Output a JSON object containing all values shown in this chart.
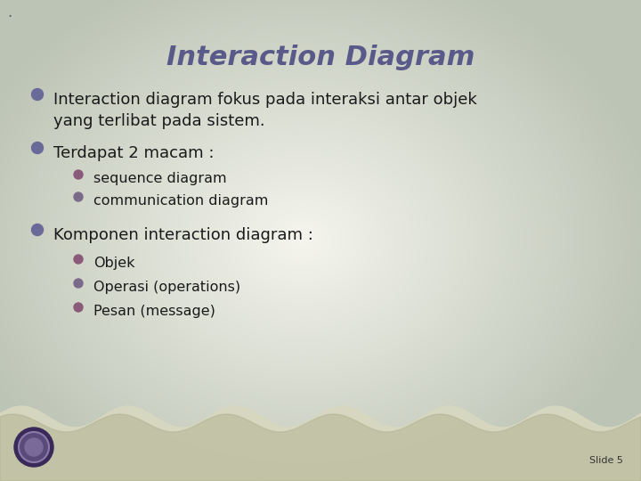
{
  "title": "Interaction Diagram",
  "title_color": "#5a5a8a",
  "title_fontsize": 22,
  "title_fontstyle": "italic",
  "title_fontweight": "bold",
  "bullet_color_l1": "#6a6a9a",
  "bullet_color_l2_1": "#8a5a7a",
  "bullet_color_l2_2": "#7a6a8a",
  "text_color": "#1a1a1a",
  "slide_number": "Slide 5",
  "content": [
    {
      "level": 1,
      "text": "Interaction diagram fokus pada interaksi antar objek\nyang terlibat pada sistem.",
      "bullet_variant": 0
    },
    {
      "level": 1,
      "text": "Terdapat 2 macam :",
      "bullet_variant": 1
    },
    {
      "level": 2,
      "text": "sequence diagram",
      "bullet_variant": 0
    },
    {
      "level": 2,
      "text": "communication diagram",
      "bullet_variant": 1
    },
    {
      "level": 1,
      "text": "Komponen interaction diagram :",
      "bullet_variant": 2
    },
    {
      "level": 2,
      "text": "Objek",
      "bullet_variant": 0
    },
    {
      "level": 2,
      "text": "Operasi (operations)",
      "bullet_variant": 1
    },
    {
      "level": 2,
      "text": "Pesan (message)",
      "bullet_variant": 2
    }
  ],
  "font_size_level1": 13,
  "font_size_level2": 11.5,
  "wavy_color_light": "#d8d8c0",
  "wavy_color_dark": "#b0b090",
  "logo_outer": "#3a2a5a",
  "logo_mid": "#5a4a7a",
  "logo_inner": "#7a6a9a"
}
